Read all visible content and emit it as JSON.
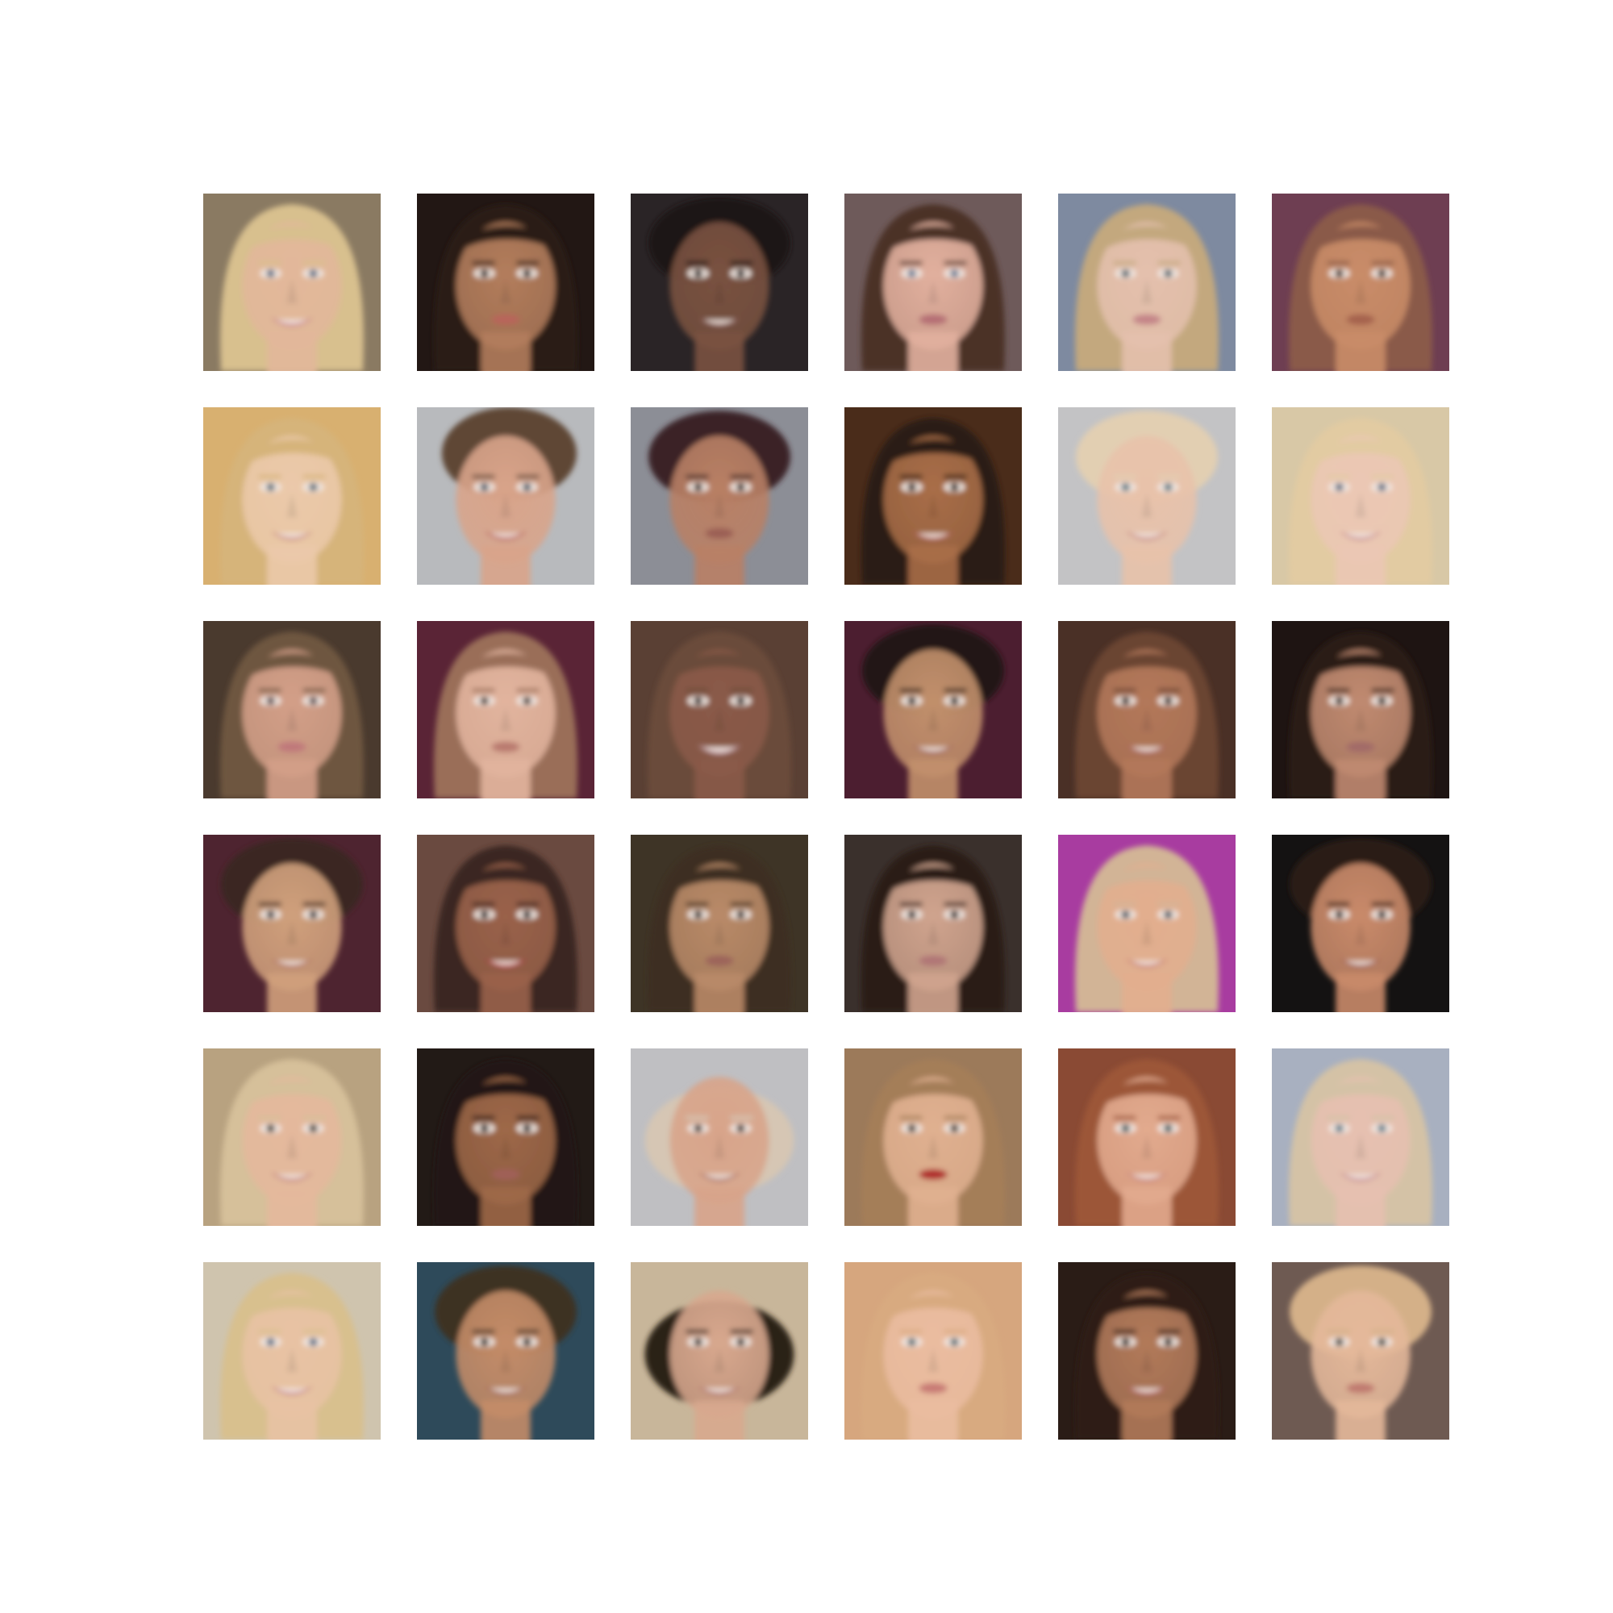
{
  "grid": {
    "rows": 6,
    "cols": 6,
    "tiles": [
      {
        "bg": "#8a7a62",
        "hair": "#d8c08e",
        "skin": "#e2b79a",
        "lips": "#c9828a",
        "eyes": "#5d6e86",
        "hairStyle": "long",
        "smile": true
      },
      {
        "bg": "#221714",
        "hair": "#2a1c16",
        "skin": "#b37d5c",
        "lips": "#b8655a",
        "eyes": "#2a1c16",
        "hairStyle": "long",
        "smile": false
      },
      {
        "bg": "#2a2426",
        "hair": "#1e1715",
        "skin": "#7a5240",
        "lips": "#8a5a52",
        "eyes": "#1e1715",
        "hairStyle": "short",
        "smile": true
      },
      {
        "bg": "#6e5a5a",
        "hair": "#4c3328",
        "skin": "#e2b09e",
        "lips": "#b56e74",
        "eyes": "#6c7d95",
        "hairStyle": "long",
        "smile": false
      },
      {
        "bg": "#7e8aa0",
        "hair": "#c3a87e",
        "skin": "#e4c0ad",
        "lips": "#c48488",
        "eyes": "#5a6a72",
        "hairStyle": "long",
        "smile": false
      },
      {
        "bg": "#6e3e52",
        "hair": "#8a5a48",
        "skin": "#c98c68",
        "lips": "#a5624e",
        "eyes": "#3e2a22",
        "hairStyle": "long",
        "smile": false
      },
      {
        "bg": "#d8b070",
        "hair": "#d6b47a",
        "skin": "#ebc9aa",
        "lips": "#c98780",
        "eyes": "#5b6f7d",
        "hairStyle": "long",
        "smile": true
      },
      {
        "bg": "#b8babd",
        "hair": "#5e4636",
        "skin": "#d9a48a",
        "lips": "#b65552",
        "eyes": "#4a5b6a",
        "hairStyle": "updo",
        "smile": true
      },
      {
        "bg": "#8c8e96",
        "hair": "#3a2426",
        "skin": "#b98065",
        "lips": "#9b5e55",
        "eyes": "#2a1c18",
        "hairStyle": "short",
        "smile": false
      },
      {
        "bg": "#4a2c1a",
        "hair": "#2a1a12",
        "skin": "#a96e48",
        "lips": "#b06058",
        "eyes": "#221610",
        "hairStyle": "long",
        "smile": true
      },
      {
        "bg": "#c3c3c5",
        "hair": "#e2cfb2",
        "skin": "#e8c2aa",
        "lips": "#c68680",
        "eyes": "#5d7a86",
        "hairStyle": "short",
        "smile": true
      },
      {
        "bg": "#d8c8a6",
        "hair": "#e2cba2",
        "skin": "#ebc7b4",
        "lips": "#c78a8e",
        "eyes": "#5e6e84",
        "hairStyle": "long",
        "smile": true
      },
      {
        "bg": "#4a3a2e",
        "hair": "#6e5640",
        "skin": "#d39f88",
        "lips": "#c0787a",
        "eyes": "#5a4a50",
        "hairStyle": "long",
        "smile": false
      },
      {
        "bg": "#5a2436",
        "hair": "#9a6e58",
        "skin": "#e2b49e",
        "lips": "#b9796e",
        "eyes": "#4a3a36",
        "hairStyle": "long",
        "smile": false
      },
      {
        "bg": "#5a4034",
        "hair": "#6b4c3a",
        "skin": "#8a5a48",
        "lips": "#c6a0a6",
        "eyes": "#221612",
        "hairStyle": "long",
        "smile": true
      },
      {
        "bg": "#4c1e30",
        "hair": "#241814",
        "skin": "#c2906c",
        "lips": "#9e5f58",
        "eyes": "#221614",
        "hairStyle": "short",
        "smile": true
      },
      {
        "bg": "#4a3026",
        "hair": "#6a4432",
        "skin": "#b3785a",
        "lips": "#a95e58",
        "eyes": "#2c1c16",
        "hairStyle": "long",
        "smile": true
      },
      {
        "bg": "#1e1412",
        "hair": "#2a1a16",
        "skin": "#c08a70",
        "lips": "#a26a68",
        "eyes": "#2a1a16",
        "hairStyle": "long",
        "smile": false
      },
      {
        "bg": "#4e2430",
        "hair": "#3a2820",
        "skin": "#d0a07c",
        "lips": "#b06e60",
        "eyes": "#3c3a40",
        "hairStyle": "short",
        "smile": true
      },
      {
        "bg": "#6a4a40",
        "hair": "#3a2620",
        "skin": "#9a624a",
        "lips": "#b0383c",
        "eyes": "#221612",
        "hairStyle": "long",
        "smile": true
      },
      {
        "bg": "#3e3426",
        "hair": "#3c2e20",
        "skin": "#b98a68",
        "lips": "#9c645a",
        "eyes": "#2a1e18",
        "hairStyle": "long",
        "smile": false
      },
      {
        "bg": "#3a302c",
        "hair": "#2a1c18",
        "skin": "#d0a48e",
        "lips": "#b07676",
        "eyes": "#2a1e1a",
        "hairStyle": "long",
        "smile": false
      },
      {
        "bg": "#a83ca0",
        "hair": "#d2b496",
        "skin": "#e2ae8e",
        "lips": "#c67870",
        "eyes": "#4e5a66",
        "hairStyle": "long",
        "smile": true
      },
      {
        "bg": "#141212",
        "hair": "#2a1c18",
        "skin": "#c98a6a",
        "lips": "#9c5a52",
        "eyes": "#2a1e1c",
        "hairStyle": "short",
        "smile": true
      },
      {
        "bg": "#b8a280",
        "hair": "#d6c09a",
        "skin": "#e4b89c",
        "lips": "#c47e78",
        "eyes": "#3e3a36",
        "hairStyle": "long",
        "smile": true
      },
      {
        "bg": "#221a16",
        "hair": "#231815",
        "skin": "#9e6848",
        "lips": "#a06058",
        "eyes": "#1e1612",
        "hairStyle": "long",
        "smile": false
      },
      {
        "bg": "#bfbfc2",
        "hair": "#d6c6b4",
        "skin": "#d8a48a",
        "lips": "#a86a60",
        "eyes": "#3a2c26",
        "hairStyle": "bald",
        "smile": true
      },
      {
        "bg": "#9c7a5a",
        "hair": "#a47e58",
        "skin": "#e0b090",
        "lips": "#b02a2c",
        "eyes": "#3e3228",
        "hairStyle": "long",
        "smile": false
      },
      {
        "bg": "#8a4a34",
        "hair": "#9c5638",
        "skin": "#e2aa8e",
        "lips": "#c8807a",
        "eyes": "#3e5a60",
        "hairStyle": "long",
        "smile": true
      },
      {
        "bg": "#a8b0c0",
        "hair": "#d4c2a6",
        "skin": "#e6c0b0",
        "lips": "#c68890",
        "eyes": "#5e7e8c",
        "hairStyle": "long",
        "smile": true
      },
      {
        "bg": "#cfc4ae",
        "hair": "#d8c08e",
        "skin": "#e8c2a4",
        "lips": "#c8848a",
        "eyes": "#5c7088",
        "hairStyle": "long",
        "smile": true
      },
      {
        "bg": "#2e4a5a",
        "hair": "#3e3024",
        "skin": "#c48c68",
        "lips": "#a46658",
        "eyes": "#2c201a",
        "hairStyle": "short",
        "smile": true
      },
      {
        "bg": "#c8b69a",
        "hair": "#2c2018",
        "skin": "#d8a88e",
        "lips": "#b0706a",
        "eyes": "#3a2e28",
        "hairStyle": "bald",
        "smile": true
      },
      {
        "bg": "#d6a67e",
        "hair": "#d8aa80",
        "skin": "#eabca0",
        "lips": "#c87a74",
        "eyes": "#5a6e76",
        "hairStyle": "long",
        "smile": false
      },
      {
        "bg": "#2a1c16",
        "hair": "#2e1e18",
        "skin": "#b27a5a",
        "lips": "#b05c5a",
        "eyes": "#22160f",
        "hairStyle": "long",
        "smile": true
      },
      {
        "bg": "#6e5a52",
        "hair": "#d4b088",
        "skin": "#e4b89a",
        "lips": "#c07a70",
        "eyes": "#4a4640",
        "hairStyle": "short",
        "smile": false
      }
    ]
  }
}
